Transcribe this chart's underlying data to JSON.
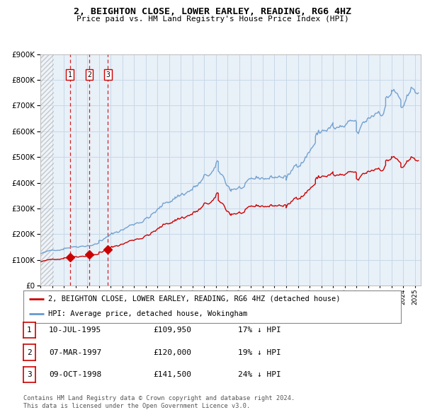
{
  "title": "2, BEIGHTON CLOSE, LOWER EARLEY, READING, RG6 4HZ",
  "subtitle": "Price paid vs. HM Land Registry's House Price Index (HPI)",
  "sales": [
    {
      "label": "1",
      "date_str": "10-JUL-1995",
      "year": 1995.53,
      "price": 109950,
      "pct": "17%",
      "dir": "↓"
    },
    {
      "label": "2",
      "date_str": "07-MAR-1997",
      "year": 1997.18,
      "price": 120000,
      "pct": "19%",
      "dir": "↓"
    },
    {
      "label": "3",
      "date_str": "09-OCT-1998",
      "year": 1998.77,
      "price": 141500,
      "pct": "24%",
      "dir": "↓"
    }
  ],
  "legend_red": "2, BEIGHTON CLOSE, LOWER EARLEY, READING, RG6 4HZ (detached house)",
  "legend_blue": "HPI: Average price, detached house, Wokingham",
  "footer1": "Contains HM Land Registry data © Crown copyright and database right 2024.",
  "footer2": "This data is licensed under the Open Government Licence v3.0.",
  "red_color": "#cc0000",
  "blue_color": "#6699cc",
  "grid_color": "#c8d8e8",
  "plot_bg": "#e8f0f8",
  "ylim": [
    0,
    900000
  ],
  "yticks": [
    0,
    100000,
    200000,
    300000,
    400000,
    500000,
    600000,
    700000,
    800000,
    900000
  ],
  "xlim_start": 1993.0,
  "xlim_end": 2025.5
}
